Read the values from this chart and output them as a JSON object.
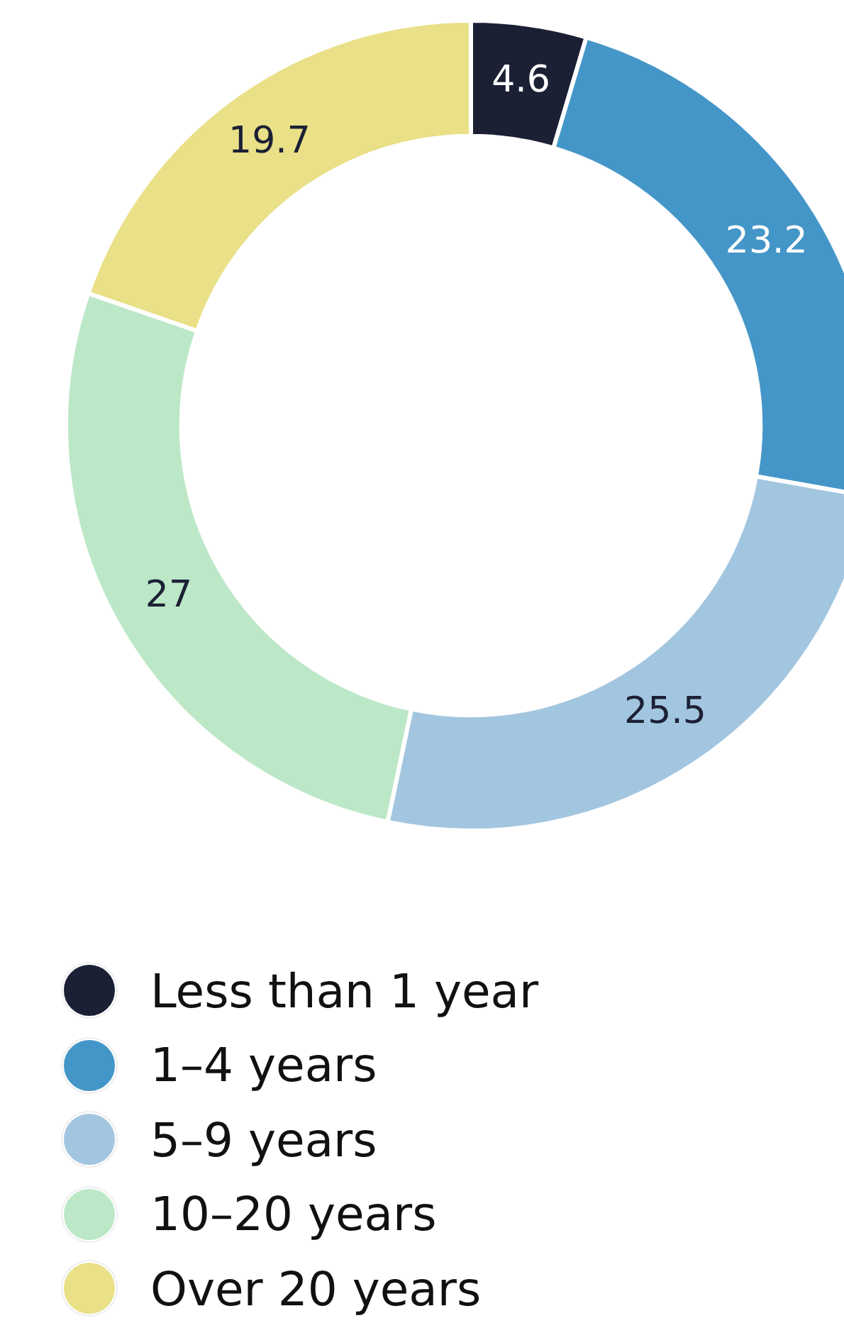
{
  "chart_data": {
    "type": "donut",
    "categories": [
      "Less than 1 year",
      "1–4 years",
      "5–9 years",
      "10–20 years",
      "Over 20 years"
    ],
    "values": [
      4.6,
      23.2,
      25.5,
      27,
      19.7
    ],
    "colors": [
      "#1c2035",
      "#4596c8",
      "#a3c6e0",
      "#bce8c7",
      "#e9e087"
    ],
    "data_labels": true,
    "legend": "bottom"
  }
}
